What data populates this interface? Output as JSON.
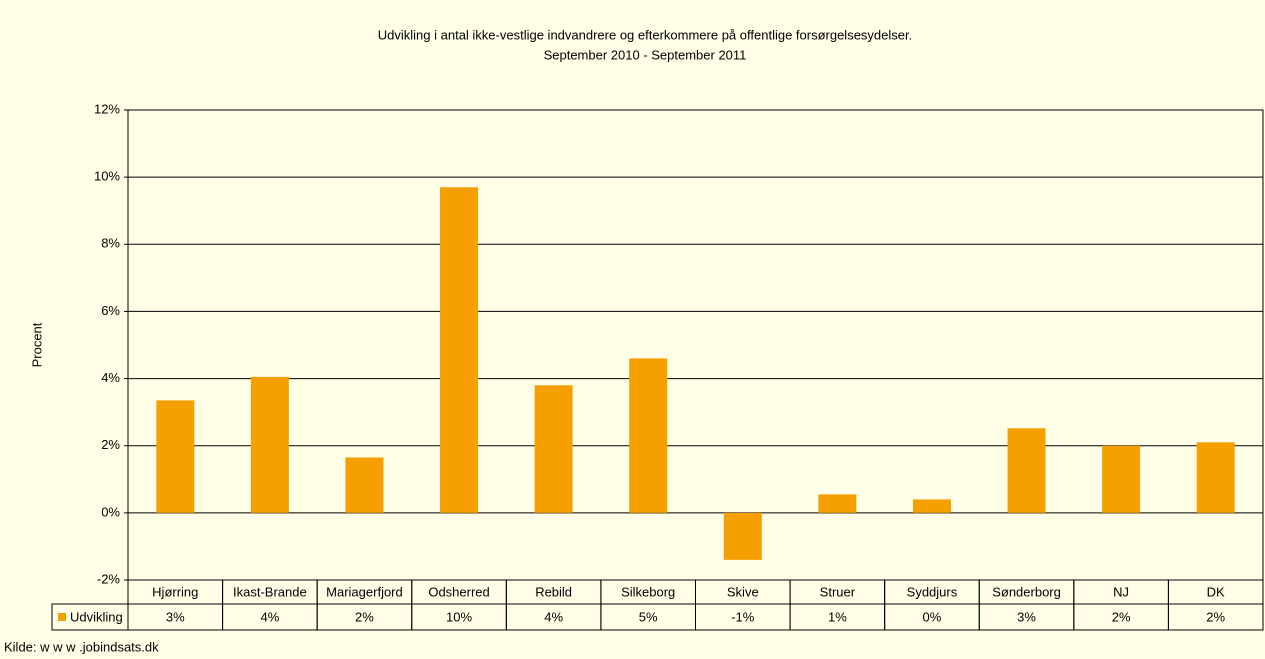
{
  "chart_data": {
    "type": "bar",
    "title": "Udvikling i antal ikke-vestlige indvandrere og efterkommere på offentlige forsørgelsesydelser.",
    "subtitle": "September 2010 - September 2011",
    "y_label": "Procent",
    "source": "Kilde: w w w .jobindsats.dk",
    "categories": [
      "Hjørring",
      "Ikast-Brande",
      "Mariagerfjord",
      "Odsherred",
      "Rebild",
      "Silkeborg",
      "Skive",
      "Struer",
      "Syddjurs",
      "Sønderborg",
      "NJ",
      "DK"
    ],
    "series": [
      {
        "name": "Udvikling",
        "color": "#f5a000",
        "values": [
          3.35,
          4.05,
          1.65,
          9.7,
          3.8,
          4.6,
          -1.4,
          0.55,
          0.4,
          2.52,
          2.0,
          2.1
        ],
        "value_labels": [
          "3%",
          "4%",
          "2%",
          "10%",
          "4%",
          "5%",
          "-1%",
          "1%",
          "0%",
          "3%",
          "2%",
          "2%"
        ]
      }
    ],
    "ylim": [
      -2,
      12
    ],
    "yticks": [
      {
        "value": -2,
        "label": "-2%"
      },
      {
        "value": 0,
        "label": "0%"
      },
      {
        "value": 2,
        "label": "2%"
      },
      {
        "value": 4,
        "label": "4%"
      },
      {
        "value": 6,
        "label": "6%"
      },
      {
        "value": 8,
        "label": "8%"
      },
      {
        "value": 10,
        "label": "10%"
      },
      {
        "value": 12,
        "label": "12%"
      }
    ],
    "grid": true
  }
}
